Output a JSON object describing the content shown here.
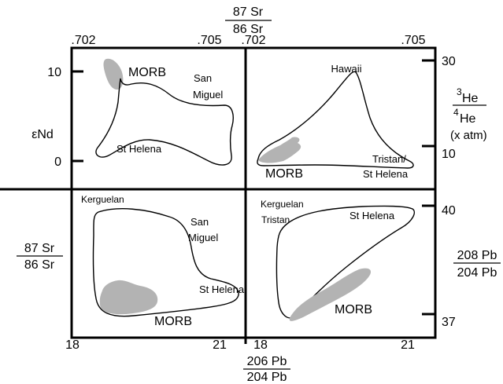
{
  "top_axis": {
    "label_num": "87 Sr",
    "label_den": "86 Sr",
    "ticks_left_panel": [
      ".702",
      ".705"
    ],
    "ticks_right_panel": [
      ".702",
      ".705"
    ]
  },
  "bottom_axis": {
    "label_num": "206 Pb",
    "label_den": "204 Pb",
    "ticks_left_panel": [
      "18",
      "21"
    ],
    "ticks_right_panel": [
      "18",
      "21"
    ]
  },
  "left_axis_top": {
    "label": "εNd",
    "ticks": [
      "10",
      "0"
    ]
  },
  "left_axis_bottom": {
    "label_num": "87 Sr",
    "label_den": "86 Sr"
  },
  "right_axis_top": {
    "label_num_sup": "3",
    "label_num": "He",
    "label_den_sup": "4",
    "label_den": "He",
    "label_note": "(x atm)",
    "ticks": [
      "30",
      "10"
    ]
  },
  "right_axis_bottom": {
    "label_num": "208 Pb",
    "label_den": "204 Pb",
    "ticks": [
      "40",
      "37"
    ]
  },
  "panels": {
    "top_left": {
      "labels": {
        "morb": "MORB",
        "san_miguel_1": "San",
        "san_miguel_2": "Miguel",
        "st_helena": "St Helena"
      }
    },
    "top_right": {
      "labels": {
        "hawaii": "Hawaii",
        "tristan": "Tristan/",
        "st_helena": "St Helena",
        "morb": "MORB"
      }
    },
    "bottom_left": {
      "labels": {
        "kerguelan": "Kerguelan",
        "san_miguel_1": "San",
        "san_miguel_2": "Miguel",
        "st_helena": "St Helena",
        "morb": "MORB"
      }
    },
    "bottom_right": {
      "labels": {
        "kerguelan": "Kerguelan",
        "tristan": "Tristan",
        "st_helena": "St Helena",
        "morb": "MORB"
      }
    }
  },
  "colors": {
    "morb_fill": "#b3b3b3",
    "line": "#000000"
  }
}
